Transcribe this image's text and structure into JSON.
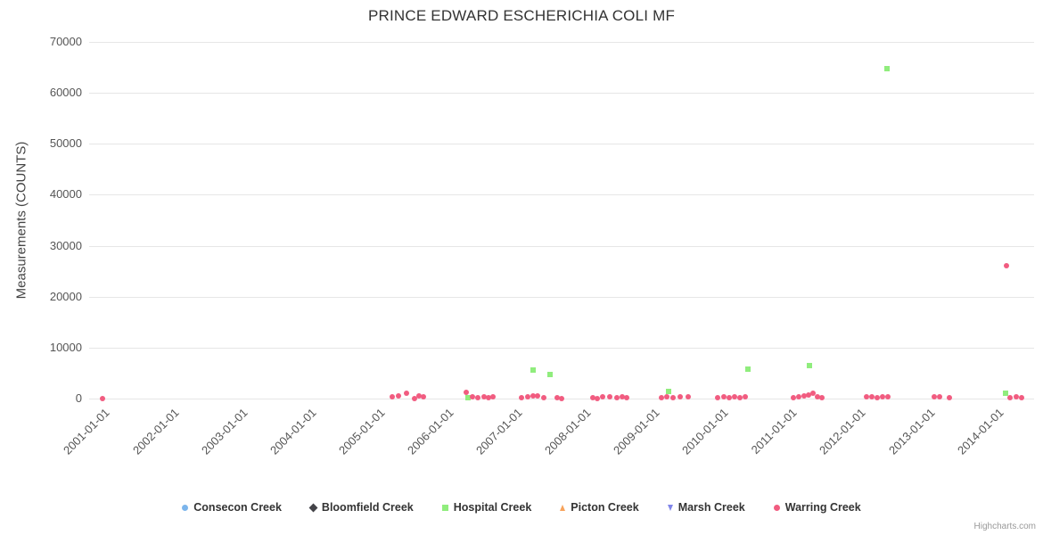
{
  "credits": "Highcharts.com",
  "chart_data": {
    "type": "scatter",
    "title": "PRINCE EDWARD ESCHERICHIA COLI MF",
    "xlabel": "",
    "ylabel": "Measurements (COUNTS)",
    "xlim": [
      2000.8,
      2014.55
    ],
    "ylim": [
      0,
      70000
    ],
    "grid": true,
    "legend_position": "bottom",
    "y_ticks": [
      0,
      10000,
      20000,
      30000,
      40000,
      50000,
      60000,
      70000
    ],
    "x_ticks": [
      {
        "value": 2001,
        "label": "2001-01-01"
      },
      {
        "value": 2002,
        "label": "2002-01-01"
      },
      {
        "value": 2003,
        "label": "2003-01-01"
      },
      {
        "value": 2004,
        "label": "2004-01-01"
      },
      {
        "value": 2005,
        "label": "2005-01-01"
      },
      {
        "value": 2006,
        "label": "2006-01-01"
      },
      {
        "value": 2007,
        "label": "2007-01-01"
      },
      {
        "value": 2008,
        "label": "2008-01-01"
      },
      {
        "value": 2009,
        "label": "2009-01-01"
      },
      {
        "value": 2010,
        "label": "2010-01-01"
      },
      {
        "value": 2011,
        "label": "2011-01-01"
      },
      {
        "value": 2012,
        "label": "2012-01-01"
      },
      {
        "value": 2013,
        "label": "2013-01-01"
      },
      {
        "value": 2014,
        "label": "2014-01-01"
      }
    ],
    "series": [
      {
        "name": "Consecon Creek",
        "color": "#7cb5ec",
        "marker": "circle",
        "points": []
      },
      {
        "name": "Bloomfield Creek",
        "color": "#434348",
        "marker": "diamond",
        "points": []
      },
      {
        "name": "Hospital Creek",
        "color": "#90ed7d",
        "marker": "square",
        "points": [
          [
            2006.31,
            200
          ],
          [
            2007.26,
            5600
          ],
          [
            2007.51,
            4800
          ],
          [
            2009.23,
            1400
          ],
          [
            2010.39,
            5700
          ],
          [
            2011.28,
            6500
          ],
          [
            2012.41,
            64800
          ],
          [
            2014.14,
            1100
          ]
        ]
      },
      {
        "name": "Picton Creek",
        "color": "#f7a35c",
        "marker": "triangle",
        "points": []
      },
      {
        "name": "Marsh Creek",
        "color": "#8085e9",
        "marker": "triangle-down",
        "points": []
      },
      {
        "name": "Warring Creek",
        "color": "#f15c80",
        "marker": "circle",
        "points": [
          [
            2001.0,
            0
          ],
          [
            2005.21,
            300
          ],
          [
            2005.3,
            500
          ],
          [
            2005.42,
            1000
          ],
          [
            2005.53,
            0
          ],
          [
            2005.6,
            500
          ],
          [
            2005.66,
            300
          ],
          [
            2006.29,
            1200
          ],
          [
            2006.38,
            300
          ],
          [
            2006.46,
            200
          ],
          [
            2006.55,
            300
          ],
          [
            2006.61,
            200
          ],
          [
            2006.68,
            300
          ],
          [
            2007.09,
            200
          ],
          [
            2007.18,
            300
          ],
          [
            2007.26,
            500
          ],
          [
            2007.32,
            500
          ],
          [
            2007.42,
            200
          ],
          [
            2007.61,
            200
          ],
          [
            2007.68,
            0
          ],
          [
            2008.13,
            200
          ],
          [
            2008.19,
            0
          ],
          [
            2008.27,
            300
          ],
          [
            2008.38,
            300
          ],
          [
            2008.48,
            200
          ],
          [
            2008.56,
            300
          ],
          [
            2008.62,
            200
          ],
          [
            2009.13,
            200
          ],
          [
            2009.21,
            300
          ],
          [
            2009.3,
            200
          ],
          [
            2009.4,
            300
          ],
          [
            2009.52,
            300
          ],
          [
            2009.95,
            200
          ],
          [
            2010.04,
            300
          ],
          [
            2010.11,
            200
          ],
          [
            2010.19,
            300
          ],
          [
            2010.27,
            200
          ],
          [
            2010.35,
            300
          ],
          [
            2011.05,
            200
          ],
          [
            2011.13,
            300
          ],
          [
            2011.2,
            500
          ],
          [
            2011.27,
            700
          ],
          [
            2011.33,
            1000
          ],
          [
            2011.4,
            300
          ],
          [
            2011.46,
            200
          ],
          [
            2012.11,
            300
          ],
          [
            2012.19,
            300
          ],
          [
            2012.27,
            200
          ],
          [
            2012.34,
            300
          ],
          [
            2012.42,
            300
          ],
          [
            2013.1,
            300
          ],
          [
            2013.17,
            300
          ],
          [
            2013.32,
            200
          ],
          [
            2014.15,
            26000
          ],
          [
            2014.2,
            200
          ],
          [
            2014.29,
            300
          ],
          [
            2014.37,
            200
          ]
        ]
      }
    ]
  }
}
